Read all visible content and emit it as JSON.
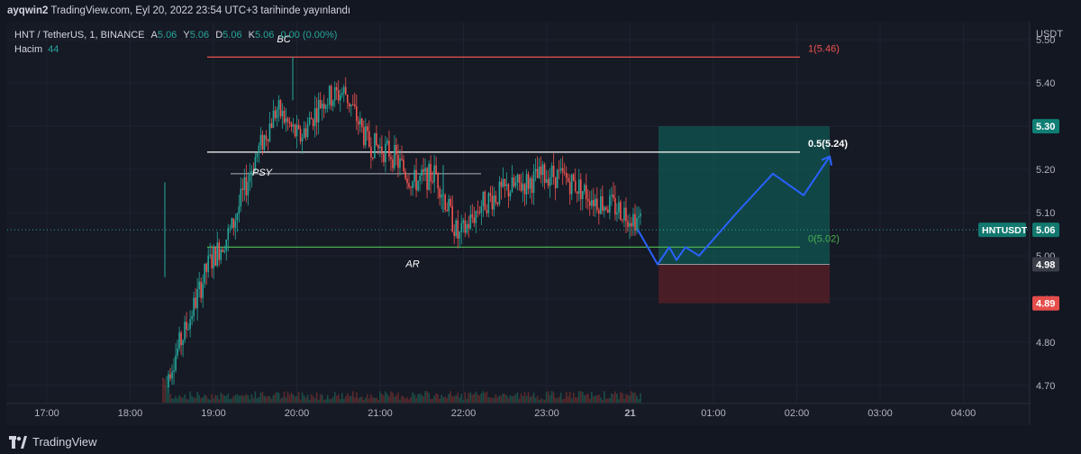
{
  "header": {
    "user": "ayqwin2",
    "published": " TradingView.com, Eyl 20, 2022 23:54 UTC+3 tarihinde yayınlandı"
  },
  "legend": {
    "symbol": "HNT / TetherUS, 1, BINANCE",
    "a_label": "A",
    "a_value": "5.06",
    "y_label": "Y",
    "y_value": "5.06",
    "d_label": "D",
    "d_value": "5.06",
    "k_label": "K",
    "k_value": "5.06",
    "change": "0.00 (0.00%)",
    "volume_label": "Hacim",
    "volume_value": "44"
  },
  "footer": {
    "brand": "TradingView"
  },
  "colors": {
    "up": "#26a69a",
    "down": "#ef5350",
    "fib_top": "#ef5350",
    "fib_mid": "#ffffff",
    "fib_bottom": "#4caf50",
    "path": "#2962ff",
    "target_zone": "#0f6b63",
    "stop_zone": "#6b1f26"
  },
  "chart_data": {
    "type": "candlestick",
    "symbol": "HNTUSDT",
    "currency": "USDT",
    "ylim": [
      4.66,
      5.55
    ],
    "y_ticks": [
      "5.50",
      "5.40",
      "5.30",
      "5.20",
      "5.10",
      "5.00",
      "4.90",
      "4.80",
      "4.70"
    ],
    "x_ticks": [
      "17:00",
      "18:00",
      "19:00",
      "20:00",
      "21:00",
      "22:00",
      "23:00",
      "21",
      "01:00",
      "02:00",
      "03:00",
      "04:00"
    ],
    "last_price": "5.06",
    "last_price_label": "HNTUSDT",
    "price_badges": [
      {
        "label": "5.30",
        "kind": "target"
      },
      {
        "label": "4.98",
        "kind": "entry"
      },
      {
        "label": "4.89",
        "kind": "stop"
      }
    ],
    "fib_levels": [
      {
        "label": "1(5.46)",
        "price": 5.46
      },
      {
        "label": "0.5(5.24)",
        "price": 5.24
      },
      {
        "label": "0(5.02)",
        "price": 5.02
      }
    ],
    "annotations": [
      {
        "text": "BC",
        "price": 5.5
      },
      {
        "text": "PSY",
        "price": 5.2
      },
      {
        "text": "AR",
        "price": 4.98
      }
    ],
    "psy_level": 5.19,
    "projection_path_prices": [
      5.06,
      4.98,
      5.02,
      4.99,
      5.02,
      5.0,
      5.1,
      5.19,
      5.14,
      5.23,
      5.21
    ],
    "target_zone": [
      5.3,
      4.98
    ],
    "stop_zone": [
      4.98,
      4.89
    ],
    "price_anchors": [
      [
        4.7,
        4.7
      ],
      [
        4.83,
        4.82
      ],
      [
        4.98,
        5.0
      ],
      [
        5.06,
        5.1
      ],
      [
        5.22,
        5.38
      ],
      [
        5.34,
        5.28
      ],
      [
        5.27,
        5.31
      ],
      [
        5.36,
        5.34
      ],
      [
        5.38,
        5.3
      ],
      [
        5.26,
        5.22
      ],
      [
        5.24,
        5.19
      ],
      [
        5.17,
        5.19
      ],
      [
        5.19,
        5.08
      ],
      [
        5.04,
        5.06
      ],
      [
        5.12,
        5.13
      ],
      [
        5.15,
        5.16
      ],
      [
        5.17,
        5.18
      ],
      [
        5.19,
        5.18
      ],
      [
        5.17,
        5.16
      ],
      [
        5.13,
        5.12
      ],
      [
        5.11,
        5.1
      ],
      [
        5.08,
        5.06
      ]
    ]
  }
}
